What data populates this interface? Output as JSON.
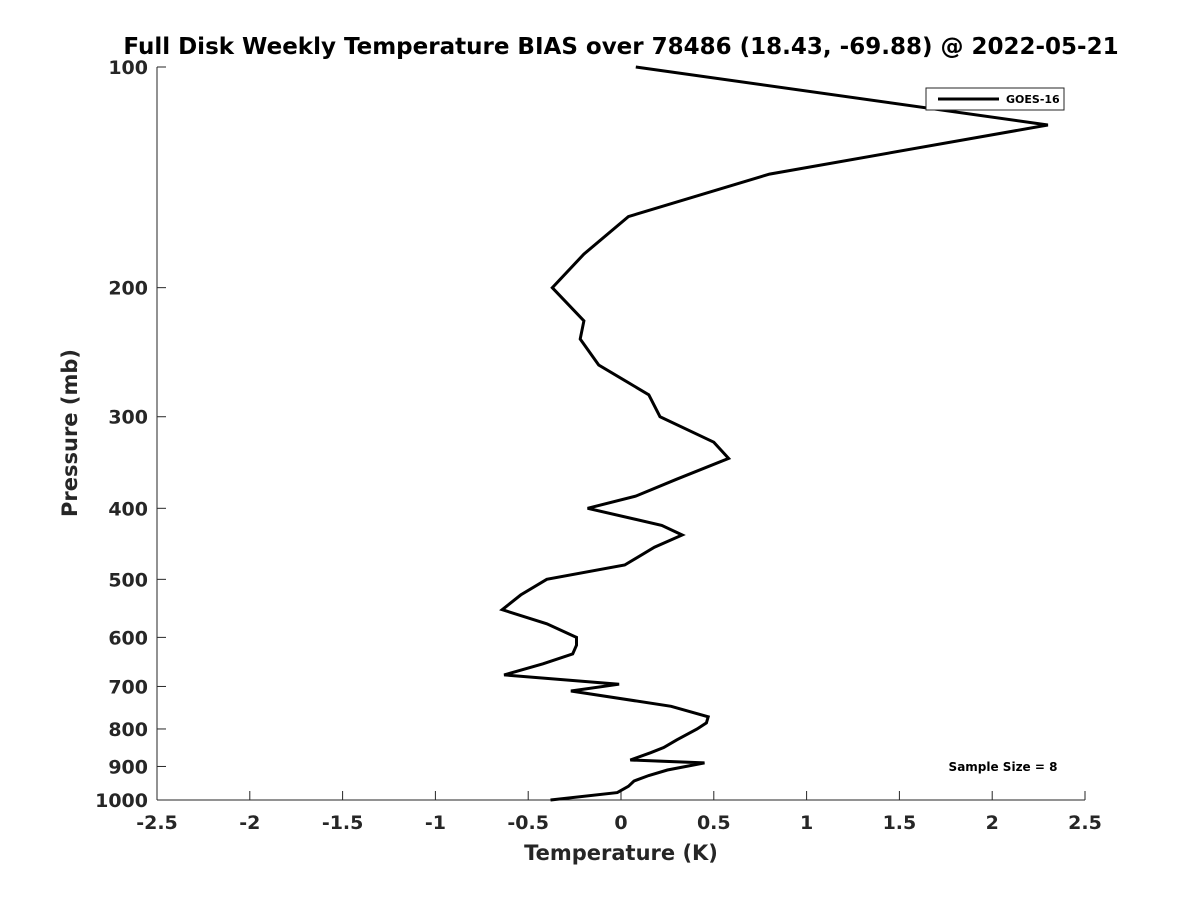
{
  "chart_data": {
    "type": "line",
    "title": "Full Disk Weekly Temperature BIAS over 78486 (18.43, -69.88) @ 2022-05-21",
    "xlabel": "Temperature (K)",
    "ylabel": "Pressure (mb)",
    "xlim": [
      -2.5,
      2.5
    ],
    "ylim": [
      100,
      1000
    ],
    "y_scale": "log",
    "y_reversed": true,
    "x_ticks": [
      -2.5,
      -2,
      -1.5,
      -1,
      -0.5,
      0,
      0.5,
      1,
      1.5,
      2,
      2.5
    ],
    "x_tick_labels": [
      "-2.5",
      "-2",
      "-1.5",
      "-1",
      "-0.5",
      "0",
      "0.5",
      "1",
      "1.5",
      "2",
      "2.5"
    ],
    "y_ticks": [
      100,
      200,
      300,
      400,
      500,
      600,
      700,
      800,
      900,
      1000
    ],
    "y_tick_labels": [
      "100",
      "200",
      "300",
      "400",
      "500",
      "600",
      "700",
      "800",
      "900",
      "1000"
    ],
    "grid": false,
    "legend_position": "top-right",
    "annotation": "Sample Size = 8",
    "series": [
      {
        "name": "GOES-16",
        "color": "#000000",
        "x": [
          0.08,
          2.3,
          0.8,
          0.04,
          -0.2,
          -0.37,
          -0.2,
          -0.22,
          -0.12,
          0.15,
          0.21,
          0.5,
          0.58,
          0.3,
          0.08,
          -0.18,
          0.22,
          0.33,
          0.18,
          0.02,
          -0.4,
          -0.54,
          -0.64,
          -0.4,
          -0.24,
          -0.24,
          -0.26,
          -0.42,
          -0.63,
          -0.01,
          -0.27,
          0.27,
          0.47,
          0.46,
          0.41,
          0.3,
          0.23,
          0.16,
          0.05,
          0.45,
          0.25,
          0.15,
          0.07,
          0.04,
          -0.02,
          -0.38
        ],
        "y": [
          100,
          120,
          140,
          160,
          180,
          200,
          222,
          235,
          255,
          280,
          300,
          325,
          342,
          365,
          385,
          400,
          422,
          435,
          452,
          478,
          500,
          525,
          550,
          575,
          600,
          615,
          632,
          652,
          675,
          695,
          710,
          745,
          770,
          785,
          800,
          828,
          848,
          862,
          882,
          890,
          910,
          926,
          942,
          958,
          977,
          1000
        ]
      }
    ]
  }
}
